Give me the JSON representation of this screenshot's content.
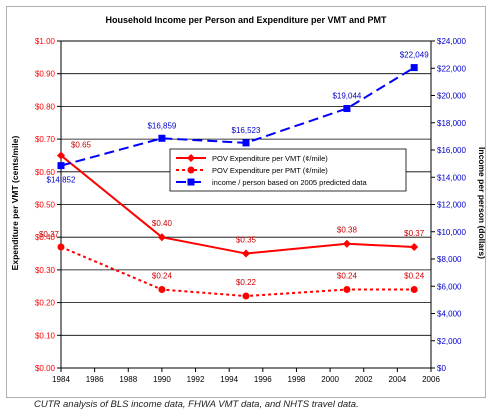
{
  "chart_data": {
    "type": "line",
    "title": "Household Income per Person and Expenditure per VMT and PMT",
    "ylabel": "Expenditure per VMT (cents/mile)",
    "y2label": "Income per person (dollars)",
    "xlabel": "",
    "xlim": [
      1984,
      2006
    ],
    "ylim": [
      0,
      1.0
    ],
    "y2lim": [
      0,
      24000
    ],
    "x_ticks": [
      "1984",
      "1986",
      "1988",
      "1990",
      "1992",
      "1994",
      "1996",
      "1998",
      "2000",
      "2002",
      "2004",
      "2006"
    ],
    "y_ticks": [
      "$0.00",
      "$0.10",
      "$0.20",
      "$0.30",
      "$0.40",
      "$0.50",
      "$0.60",
      "$0.70",
      "$0.80",
      "$0.90",
      "$1.00"
    ],
    "y2_ticks": [
      "$0",
      "$2,000",
      "$4,000",
      "$6,000",
      "$8,000",
      "$10,000",
      "$12,000",
      "$14,000",
      "$16,000",
      "$18,000",
      "$20,000",
      "$22,000",
      "$24,000"
    ],
    "grid": "horizontal",
    "legend_position": "center",
    "series": [
      {
        "name": "POV Expenditure per VMT (¢/mile)",
        "axis": "left",
        "color": "#ff0000",
        "style": "solid",
        "marker": "diamond",
        "x": [
          1984,
          1990,
          1995,
          2001,
          2005
        ],
        "values": [
          0.65,
          0.4,
          0.35,
          0.38,
          0.37
        ],
        "labels": [
          "$0.65",
          "$0.40",
          "$0.35",
          "$0.38",
          "$0.37"
        ]
      },
      {
        "name": "POV Expenditure per PMT (¢/mile)",
        "axis": "left",
        "color": "#ff0000",
        "style": "dotted",
        "marker": "circle",
        "x": [
          1984,
          1990,
          1995,
          2001,
          2005
        ],
        "values": [
          0.37,
          0.24,
          0.22,
          0.24,
          0.24
        ],
        "labels": [
          "$0.37",
          "$0.24",
          "$0.22",
          "$0.24",
          "$0.24"
        ]
      },
      {
        "name": "income / person based on 2005 predicted data",
        "axis": "right",
        "color": "#0000ff",
        "style": "dashed",
        "marker": "square",
        "x": [
          1984,
          1990,
          1995,
          2001,
          2005
        ],
        "values": [
          14852,
          16859,
          16523,
          19044,
          22049
        ],
        "labels": [
          "$14,852",
          "$16,859",
          "$16,523",
          "$19,044",
          "$22,049"
        ]
      }
    ]
  },
  "caption": "CUTR analysis of BLS income data, FHWA VMT data, and NHTS travel data."
}
